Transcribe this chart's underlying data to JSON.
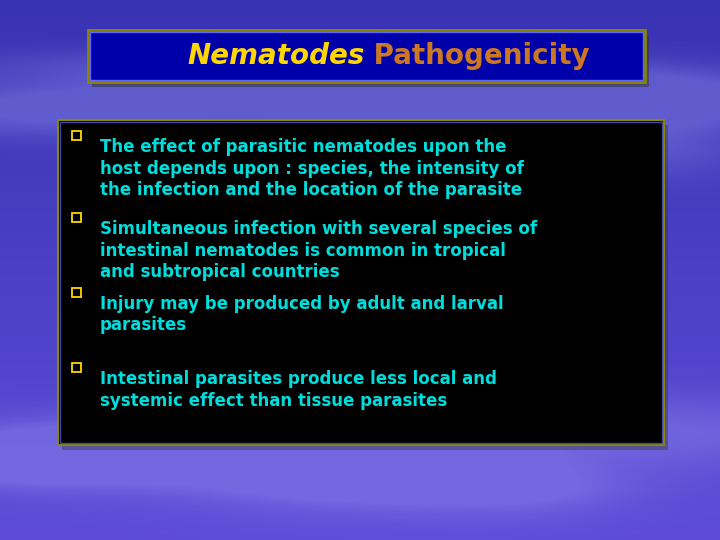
{
  "title_italic": "Nematodes",
  "title_normal": " Pathogenicity",
  "title_italic_color": "#FFD700",
  "title_normal_color": "#CC7722",
  "title_bg_color": "#0000AA",
  "title_border_color": "#888800",
  "title_border_color2": "#AAAAFF",
  "bullet_color": "#FFD700",
  "text_color": "#00DDDD",
  "content_bg_color": "#000000",
  "content_border_color": "#888800",
  "bullets": [
    "The effect of parasitic nematodes upon the\nhost depends upon : species, the intensity of\nthe infection and the location of the parasite",
    "Simultaneous infection with several species of\nintestinal nematodes is common in tropical\nand subtropical countries",
    "Injury may be produced by adult and larval\nparasites",
    "Intestinal parasites produce less local and\nsystemic effect than tissue parasites"
  ],
  "font_size_title": 20,
  "font_size_body": 12
}
